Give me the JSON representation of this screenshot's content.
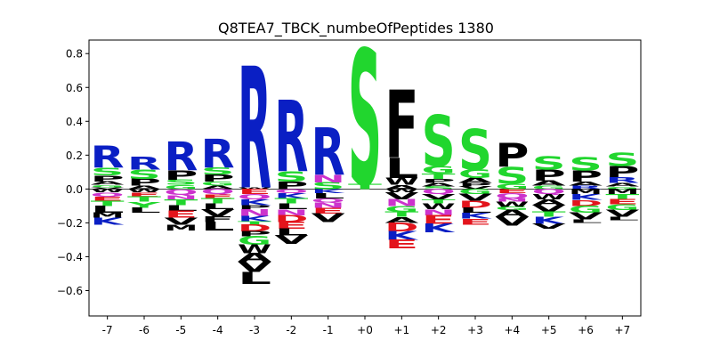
{
  "chart_data": {
    "type": "sequence-logo",
    "title": "Q8TEA7_TBCK_numbeOfPeptides 1380",
    "xlabel": "",
    "ylabel": "",
    "ylim": [
      -0.75,
      0.88
    ],
    "yticks": [
      -0.6,
      -0.4,
      -0.2,
      0.0,
      0.2,
      0.4,
      0.6,
      0.8
    ],
    "ytick_labels": [
      "−0.6",
      "−0.4",
      "−0.2",
      "0.0",
      "0.2",
      "0.4",
      "0.6",
      "0.8"
    ],
    "categories": [
      "-7",
      "-6",
      "-5",
      "-4",
      "-3",
      "-2",
      "-1",
      "+0",
      "+1",
      "+2",
      "+3",
      "+4",
      "+5",
      "+6",
      "+7"
    ],
    "grid": false,
    "colors": {
      "R": "#0a1fc4",
      "K": "#0a1fc4",
      "H": "#0a1fc4",
      "S": "#21d62e",
      "T": "#21d62e",
      "G": "#21d62e",
      "C": "#21d62e",
      "Y": "#21d62e",
      "D": "#e3141c",
      "E": "#e3141c",
      "N": "#cc33cc",
      "Q": "#cc33cc",
      "P": "#000000",
      "A": "#000000",
      "V": "#000000",
      "L": "#000000",
      "I": "#000000",
      "F": "#000000",
      "M": "#000000",
      "W": "#000000"
    },
    "positive": [
      [
        [
          "R",
          0.13
        ],
        [
          "S",
          0.045
        ],
        [
          "P",
          0.035
        ],
        [
          "A",
          0.02
        ],
        [
          "G",
          0.015
        ],
        [
          "V",
          0.01
        ]
      ],
      [
        [
          "R",
          0.075
        ],
        [
          "S",
          0.055
        ],
        [
          "P",
          0.04
        ],
        [
          "A",
          0.02
        ]
      ],
      [
        [
          "R",
          0.17
        ],
        [
          "P",
          0.055
        ],
        [
          "S",
          0.03
        ],
        [
          "G",
          0.025
        ]
      ],
      [
        [
          "R",
          0.17
        ],
        [
          "S",
          0.04
        ],
        [
          "P",
          0.04
        ],
        [
          "G",
          0.025
        ],
        [
          "A",
          0.02
        ]
      ],
      [
        [
          "R",
          0.72
        ],
        [
          "W",
          0.01
        ]
      ],
      [
        [
          "R",
          0.42
        ],
        [
          "S",
          0.06
        ],
        [
          "P",
          0.045
        ]
      ],
      [
        [
          "R",
          0.28
        ],
        [
          "N",
          0.045
        ],
        [
          "S",
          0.04
        ]
      ],
      [
        [
          "S",
          0.8
        ],
        [
          "T",
          0.03
        ]
      ],
      [
        [
          "F",
          0.4
        ],
        [
          "L",
          0.12
        ],
        [
          "W",
          0.04
        ],
        [
          "A",
          0.025
        ]
      ],
      [
        [
          "S",
          0.3
        ],
        [
          "G",
          0.045
        ],
        [
          "T",
          0.03
        ],
        [
          "P",
          0.025
        ],
        [
          "A",
          0.02
        ],
        [
          "S",
          0.015
        ]
      ],
      [
        [
          "S",
          0.24
        ],
        [
          "G",
          0.05
        ],
        [
          "A",
          0.03
        ],
        [
          "P",
          0.02
        ],
        [
          "V",
          0.015
        ]
      ],
      [
        [
          "P",
          0.14
        ],
        [
          "S",
          0.1
        ],
        [
          "G",
          0.03
        ]
      ],
      [
        [
          "S",
          0.08
        ],
        [
          "P",
          0.065
        ],
        [
          "A",
          0.03
        ],
        [
          "G",
          0.02
        ]
      ],
      [
        [
          "S",
          0.08
        ],
        [
          "P",
          0.065
        ],
        [
          "A",
          0.025
        ],
        [
          "R",
          0.02
        ]
      ],
      [
        [
          "S",
          0.08
        ],
        [
          "P",
          0.065
        ],
        [
          "R",
          0.035
        ],
        [
          "A",
          0.02
        ],
        [
          "G",
          0.015
        ]
      ]
    ],
    "negative": [
      [
        [
          "W",
          0.02
        ],
        [
          "Q",
          0.025
        ],
        [
          "E",
          0.025
        ],
        [
          "T",
          0.03
        ],
        [
          "L",
          0.04
        ],
        [
          "M",
          0.03
        ],
        [
          "K",
          0.04
        ]
      ],
      [
        [
          "W",
          0.02
        ],
        [
          "E",
          0.025
        ],
        [
          "T",
          0.03
        ],
        [
          "Y",
          0.035
        ],
        [
          "L",
          0.03
        ]
      ],
      [
        [
          "Q",
          0.035
        ],
        [
          "N",
          0.025
        ],
        [
          "T",
          0.035
        ],
        [
          "L",
          0.035
        ],
        [
          "E",
          0.04
        ],
        [
          "V",
          0.04
        ],
        [
          "M",
          0.035
        ]
      ],
      [
        [
          "Q",
          0.03
        ],
        [
          "E",
          0.025
        ],
        [
          "T",
          0.03
        ],
        [
          "L",
          0.035
        ],
        [
          "V",
          0.04
        ],
        [
          "F",
          0.035
        ],
        [
          "L",
          0.05
        ]
      ],
      [
        [
          "E",
          0.03
        ],
        [
          "Q",
          0.03
        ],
        [
          "K",
          0.035
        ],
        [
          "P",
          0.025
        ],
        [
          "N",
          0.04
        ],
        [
          "K",
          0.03
        ],
        [
          "T",
          0.02
        ],
        [
          "D",
          0.04
        ],
        [
          "P",
          0.03
        ],
        [
          "G",
          0.05
        ],
        [
          "W",
          0.05
        ],
        [
          "A",
          0.05
        ],
        [
          "V",
          0.06
        ],
        [
          "L",
          0.07
        ]
      ],
      [
        [
          "Q",
          0.025
        ],
        [
          "K",
          0.03
        ],
        [
          "T",
          0.03
        ],
        [
          "L",
          0.035
        ],
        [
          "N",
          0.035
        ],
        [
          "D",
          0.04
        ],
        [
          "E",
          0.04
        ],
        [
          "L",
          0.04
        ],
        [
          "V",
          0.05
        ]
      ],
      [
        [
          "K",
          0.025
        ],
        [
          "L",
          0.03
        ],
        [
          "Q",
          0.025
        ],
        [
          "N",
          0.03
        ],
        [
          "E",
          0.035
        ],
        [
          "V",
          0.05
        ]
      ],
      [],
      [
        [
          "W",
          0.02
        ],
        [
          "V",
          0.04
        ],
        [
          "N",
          0.04
        ],
        [
          "G",
          0.035
        ],
        [
          "T",
          0.03
        ],
        [
          "A",
          0.035
        ],
        [
          "D",
          0.05
        ],
        [
          "K",
          0.05
        ],
        [
          "E",
          0.05
        ]
      ],
      [
        [
          "Q",
          0.03
        ],
        [
          "V",
          0.03
        ],
        [
          "T",
          0.025
        ],
        [
          "W",
          0.035
        ],
        [
          "N",
          0.035
        ],
        [
          "E",
          0.05
        ],
        [
          "K",
          0.05
        ]
      ],
      [
        [
          "G",
          0.03
        ],
        [
          "V",
          0.04
        ],
        [
          "D",
          0.04
        ],
        [
          "L",
          0.03
        ],
        [
          "K",
          0.035
        ],
        [
          "E",
          0.035
        ]
      ],
      [
        [
          "E",
          0.025
        ],
        [
          "Q",
          0.03
        ],
        [
          "N",
          0.02
        ],
        [
          "W",
          0.03
        ],
        [
          "G",
          0.02
        ],
        [
          "A",
          0.04
        ],
        [
          "V",
          0.05
        ]
      ],
      [
        [
          "Q",
          0.03
        ],
        [
          "W",
          0.03
        ],
        [
          "A",
          0.035
        ],
        [
          "V",
          0.04
        ],
        [
          "T",
          0.03
        ],
        [
          "K",
          0.04
        ],
        [
          "V",
          0.03
        ]
      ],
      [
        [
          "M",
          0.03
        ],
        [
          "K",
          0.035
        ],
        [
          "D",
          0.035
        ],
        [
          "G",
          0.04
        ],
        [
          "V",
          0.04
        ],
        [
          "L",
          0.02
        ]
      ],
      [
        [
          "M",
          0.03
        ],
        [
          "T",
          0.03
        ],
        [
          "E",
          0.03
        ],
        [
          "G",
          0.035
        ],
        [
          "V",
          0.04
        ],
        [
          "L",
          0.02
        ]
      ]
    ]
  }
}
